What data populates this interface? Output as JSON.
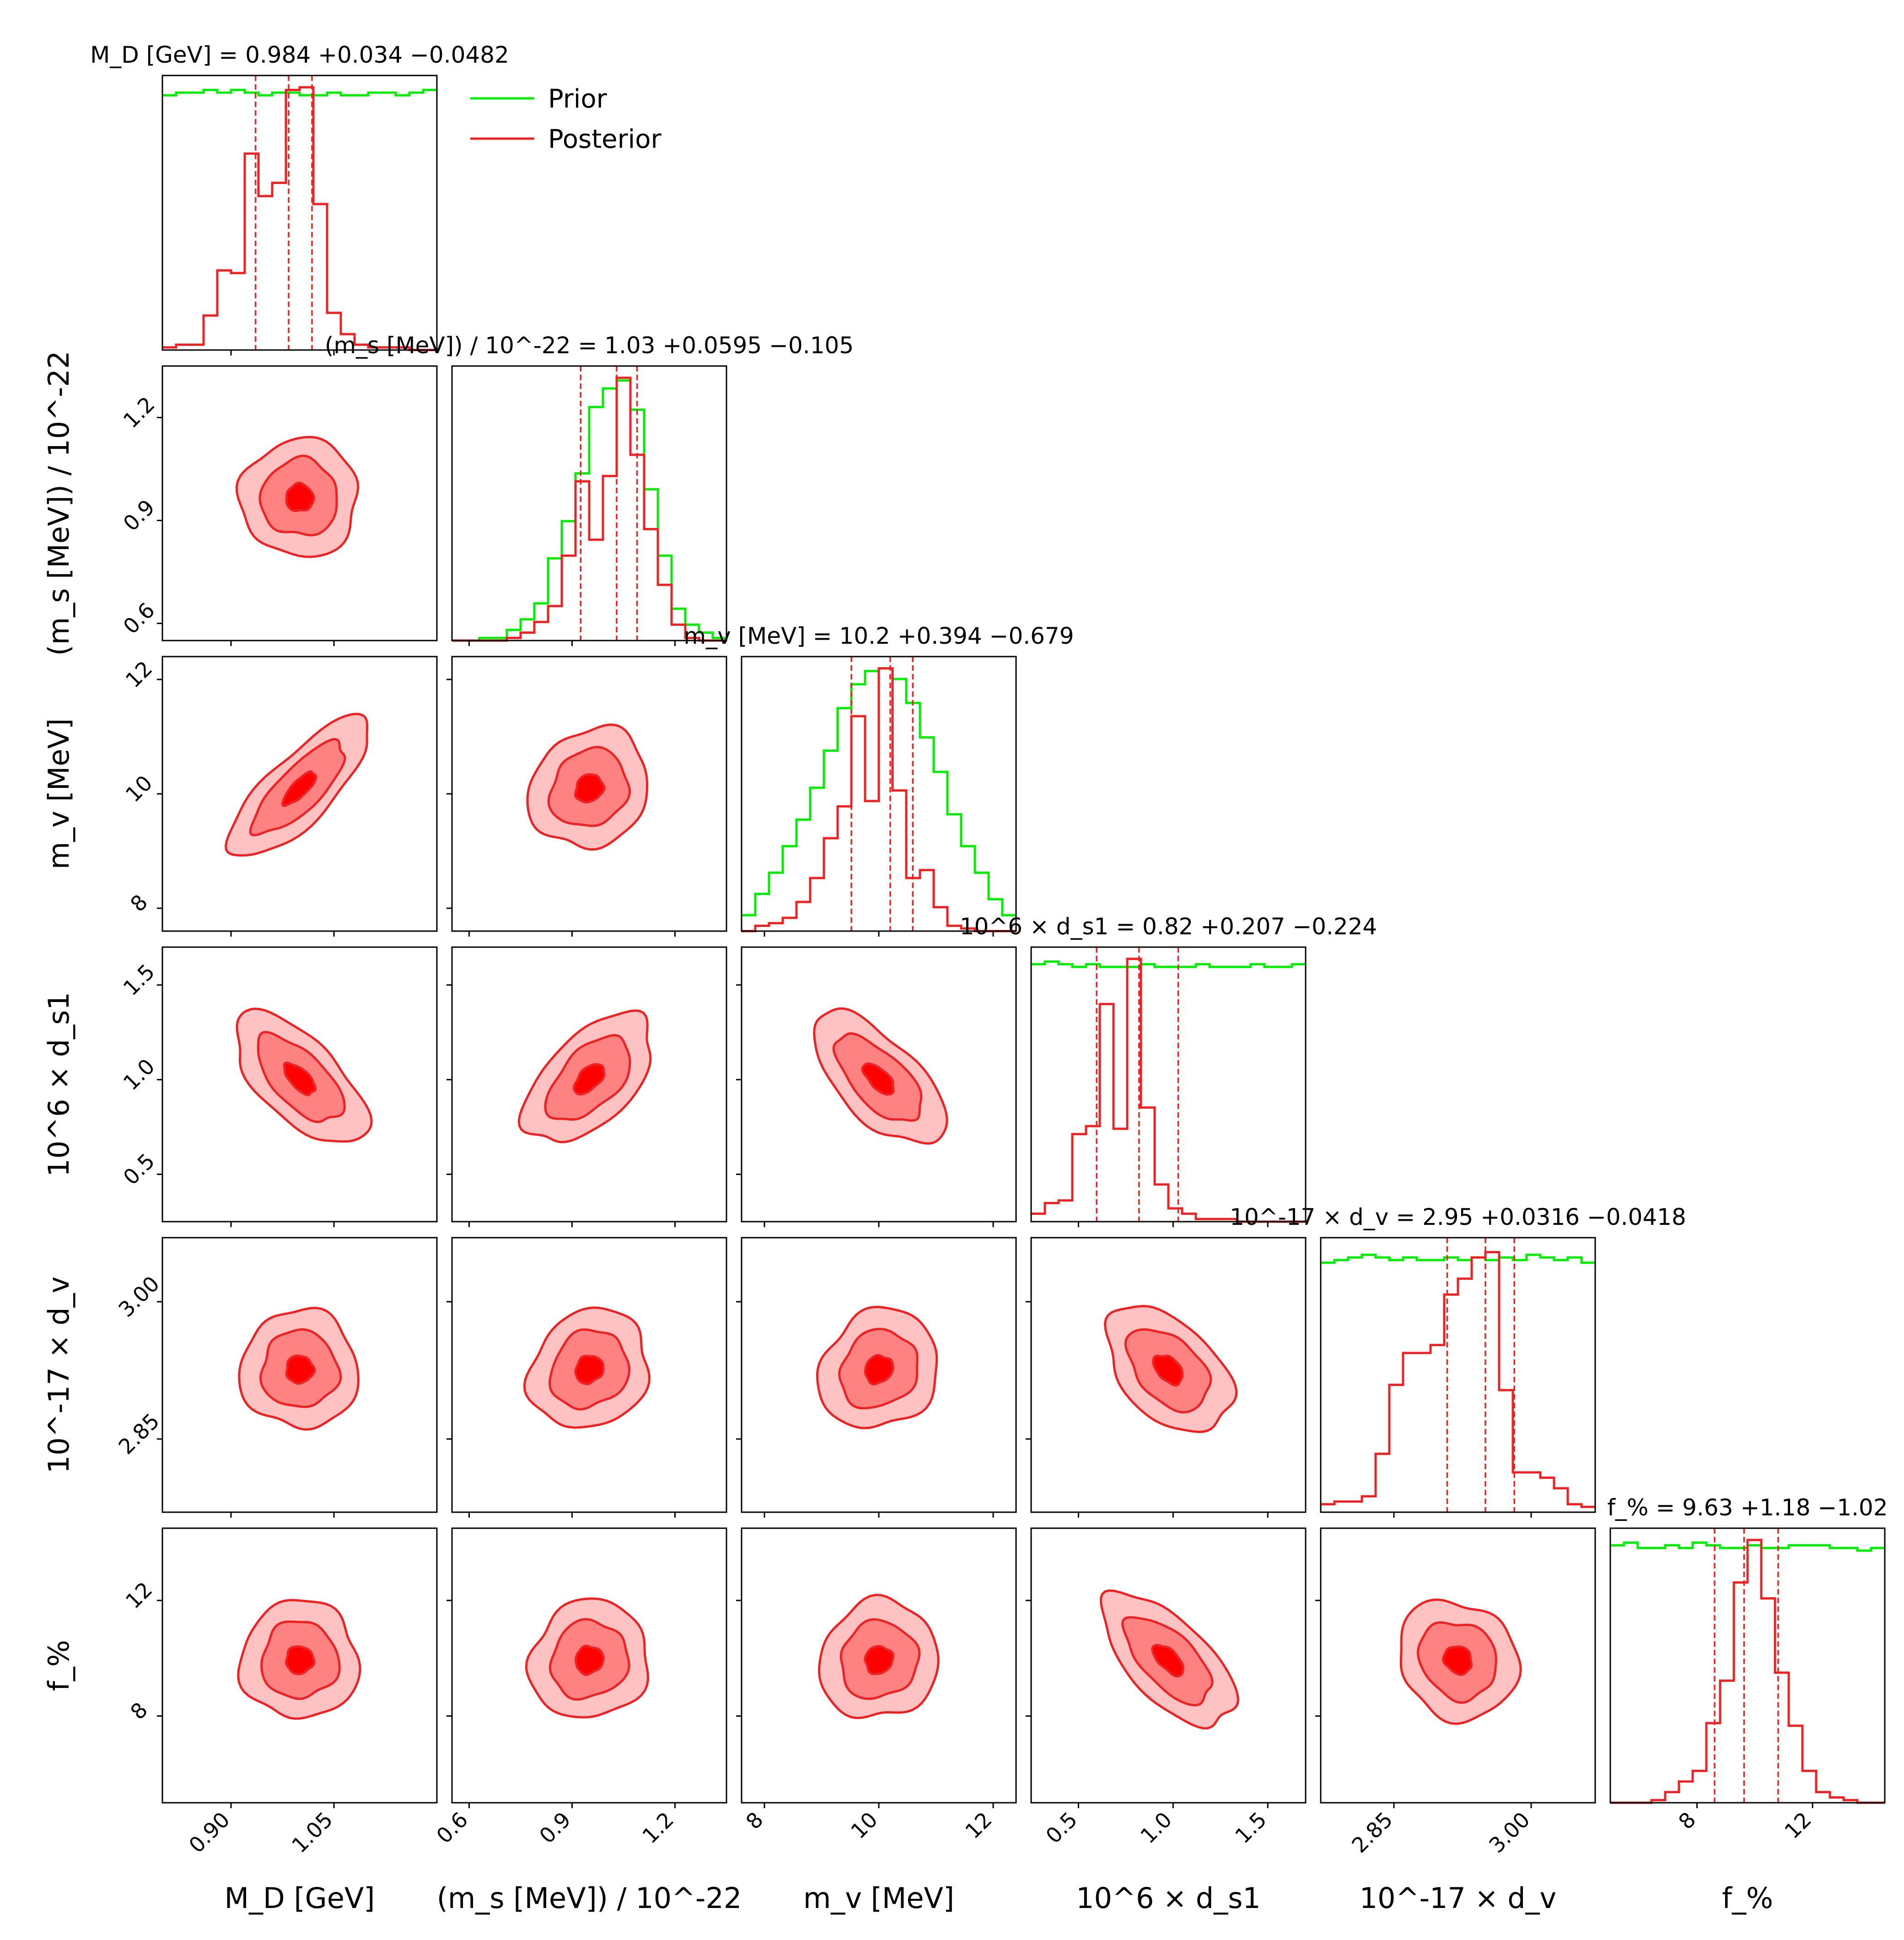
{
  "chart_data": {
    "type": "corner",
    "parameters": [
      {
        "key": "MD",
        "axis_label": "M_D [GeV]",
        "title": "M_D [GeV] = 0.984 +0.034 −0.0482",
        "median": 0.984,
        "plus": 0.034,
        "minus": 0.0482,
        "range": [
          0.8,
          1.2
        ],
        "ticks": [
          0.9,
          1.05
        ],
        "tick_labels": [
          "0.90",
          "1.05"
        ]
      },
      {
        "key": "ms",
        "axis_label": "(m_s [MeV]) / 10^-22",
        "title": "(m_s [MeV]) / 10^-22 = 1.03 +0.0595 −0.105",
        "median": 1.03,
        "plus": 0.0595,
        "minus": 0.105,
        "range": [
          0.55,
          1.35
        ],
        "ticks": [
          0.6,
          0.9,
          1.2
        ],
        "tick_labels": [
          "0.6",
          "0.9",
          "1.2"
        ]
      },
      {
        "key": "mv",
        "axis_label": "m_v [MeV]",
        "title": "m_v [MeV] = 10.2 +0.394 −0.679",
        "median": 10.2,
        "plus": 0.394,
        "minus": 0.679,
        "range": [
          7.6,
          12.4
        ],
        "ticks": [
          8,
          10,
          12
        ],
        "tick_labels": [
          "8",
          "10",
          "12"
        ]
      },
      {
        "key": "ds1",
        "axis_label": "10^6 × d_s1",
        "title": "10^6 × d_s1 = 0.82 +0.207 −0.224",
        "median": 0.82,
        "plus": 0.207,
        "minus": 0.224,
        "range": [
          0.25,
          1.7
        ],
        "ticks": [
          0.5,
          1.0,
          1.5
        ],
        "tick_labels": [
          "0.5",
          "1.0",
          "1.5"
        ]
      },
      {
        "key": "dv",
        "axis_label": "10^-17 × d_v",
        "title": "10^-17 × d_v = 2.95 +0.0316 −0.0418",
        "median": 2.95,
        "plus": 0.0316,
        "minus": 0.0418,
        "range": [
          2.77,
          3.07
        ],
        "ticks": [
          2.85,
          3.0
        ],
        "tick_labels": [
          "2.85",
          "3.00"
        ]
      },
      {
        "key": "f",
        "axis_label": "f_%",
        "title": "f_% = 9.63 +1.18 −1.02",
        "median": 9.63,
        "plus": 1.18,
        "minus": 1.02,
        "range": [
          5.0,
          14.5
        ],
        "ticks": [
          8,
          12
        ],
        "tick_labels": [
          "8",
          "12"
        ]
      }
    ],
    "histograms": [
      {
        "param": "MD",
        "prior": [
          0.96,
          0.97,
          0.97,
          0.98,
          0.97,
          0.98,
          0.97,
          0.96,
          0.97,
          0.97,
          0.96,
          0.96,
          0.97,
          0.96,
          0.96,
          0.97,
          0.97,
          0.96,
          0.97,
          0.98
        ],
        "posterior": [
          0.01,
          0.02,
          0.02,
          0.13,
          0.3,
          0.29,
          0.74,
          0.58,
          0.63,
          0.98,
          0.99,
          0.55,
          0.14,
          0.06,
          0.02,
          0.01,
          0.01,
          0.01,
          0.0,
          0.0
        ]
      },
      {
        "param": "ms",
        "prior": [
          0.0,
          0.0,
          0.01,
          0.01,
          0.04,
          0.08,
          0.14,
          0.31,
          0.45,
          0.63,
          0.88,
          0.95,
          0.98,
          0.87,
          0.57,
          0.32,
          0.12,
          0.06,
          0.03,
          0.01
        ],
        "posterior": [
          0.0,
          0.0,
          0.0,
          0.0,
          0.01,
          0.03,
          0.07,
          0.13,
          0.32,
          0.6,
          0.38,
          0.62,
          0.99,
          0.7,
          0.42,
          0.21,
          0.06,
          0.01,
          0.0,
          0.0
        ]
      },
      {
        "param": "mv",
        "prior": [
          0.06,
          0.14,
          0.22,
          0.32,
          0.42,
          0.54,
          0.68,
          0.84,
          0.93,
          0.98,
          0.99,
          0.95,
          0.86,
          0.73,
          0.6,
          0.44,
          0.32,
          0.22,
          0.12,
          0.06
        ],
        "posterior": [
          0.0,
          0.02,
          0.03,
          0.05,
          0.11,
          0.2,
          0.35,
          0.47,
          0.81,
          0.49,
          0.99,
          0.53,
          0.2,
          0.23,
          0.09,
          0.02,
          0.01,
          0.0,
          0.0,
          0.0
        ]
      },
      {
        "param": "ds1",
        "prior": [
          0.97,
          0.98,
          0.97,
          0.96,
          0.97,
          0.96,
          0.96,
          0.96,
          0.97,
          0.96,
          0.96,
          0.96,
          0.97,
          0.96,
          0.96,
          0.96,
          0.97,
          0.96,
          0.96,
          0.97
        ],
        "posterior": [
          0.03,
          0.07,
          0.08,
          0.33,
          0.36,
          0.82,
          0.35,
          0.99,
          0.43,
          0.14,
          0.05,
          0.03,
          0.01,
          0.01,
          0.01,
          0.0,
          0.0,
          0.0,
          0.0,
          0.0
        ]
      },
      {
        "param": "dv",
        "prior": [
          0.94,
          0.95,
          0.96,
          0.97,
          0.96,
          0.95,
          0.96,
          0.95,
          0.95,
          0.96,
          0.95,
          0.96,
          0.95,
          0.96,
          0.95,
          0.97,
          0.96,
          0.95,
          0.96,
          0.94
        ],
        "posterior": [
          0.03,
          0.04,
          0.04,
          0.06,
          0.22,
          0.48,
          0.6,
          0.6,
          0.63,
          0.82,
          0.88,
          0.96,
          0.98,
          0.46,
          0.15,
          0.15,
          0.13,
          0.09,
          0.03,
          0.02
        ]
      },
      {
        "param": "f",
        "prior": [
          0.97,
          0.98,
          0.96,
          0.96,
          0.97,
          0.96,
          0.98,
          0.97,
          0.96,
          0.96,
          0.97,
          0.96,
          0.96,
          0.97,
          0.97,
          0.97,
          0.96,
          0.96,
          0.95,
          0.96
        ],
        "posterior": [
          0.0,
          0.0,
          0.0,
          0.01,
          0.04,
          0.08,
          0.12,
          0.3,
          0.46,
          0.83,
          0.99,
          0.77,
          0.49,
          0.29,
          0.12,
          0.04,
          0.02,
          0.01,
          0.0,
          0.0
        ]
      }
    ],
    "correlations": [
      {
        "x": "MD",
        "y": "ms",
        "rho": 0.0
      },
      {
        "x": "MD",
        "y": "mv",
        "rho": 0.75
      },
      {
        "x": "ms",
        "y": "mv",
        "rho": 0.1
      },
      {
        "x": "MD",
        "y": "ds1",
        "rho": -0.55
      },
      {
        "x": "ms",
        "y": "ds1",
        "rho": 0.45
      },
      {
        "x": "mv",
        "y": "ds1",
        "rho": -0.55
      },
      {
        "x": "MD",
        "y": "dv",
        "rho": 0.0
      },
      {
        "x": "ms",
        "y": "dv",
        "rho": 0.1
      },
      {
        "x": "mv",
        "y": "dv",
        "rho": 0.1
      },
      {
        "x": "ds1",
        "y": "dv",
        "rho": -0.35
      },
      {
        "x": "MD",
        "y": "f",
        "rho": 0.0
      },
      {
        "x": "ms",
        "y": "f",
        "rho": 0.05
      },
      {
        "x": "mv",
        "y": "f",
        "rho": 0.05
      },
      {
        "x": "ds1",
        "y": "f",
        "rho": -0.55
      },
      {
        "x": "dv",
        "y": "f",
        "rho": -0.1
      }
    ],
    "contour_levels": [
      "inner",
      "middle",
      "outer"
    ],
    "legend": {
      "placement": "top-right-of-first-panel",
      "entries": [
        {
          "label": "Prior",
          "color": "#00ee00"
        },
        {
          "label": "Posterior",
          "color": "#ee2222"
        }
      ]
    },
    "colors": {
      "prior": "#00ee00",
      "posterior": "#ee2222",
      "quantile_line": "#ee2222",
      "contour_outer_fill": "#ffc2c2",
      "contour_middle_fill": "#ff8282",
      "contour_inner_fill": "#ff0000",
      "contour_edge": "#ee2222"
    },
    "grid": false
  }
}
